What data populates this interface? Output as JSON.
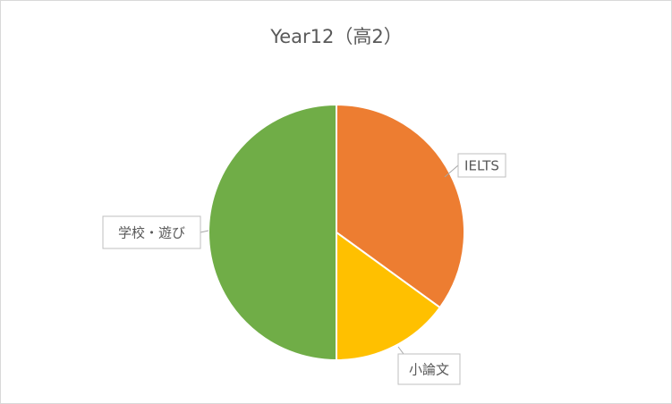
{
  "chart_data": {
    "type": "pie",
    "title": "Year12（高2）",
    "categories": [
      "IELTS",
      "小論文",
      "学校・遊び"
    ],
    "values": [
      35,
      15,
      50
    ],
    "colors": [
      "#ed7d31",
      "#ffc000",
      "#70ad47"
    ]
  }
}
